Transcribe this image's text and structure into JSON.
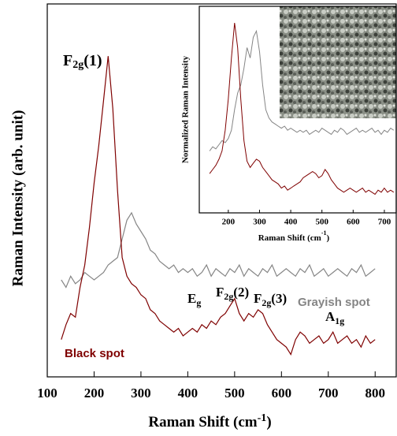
{
  "chart_data": [
    {
      "type": "line",
      "x_label": {
        "text": "Raman Shift (cm",
        "sup": "-1",
        "end": ")"
      },
      "y_label": "Raman Intensity (arb. unit)",
      "xlim": [
        100,
        845
      ],
      "ylim": [
        0,
        100
      ],
      "xticks": [
        100,
        200,
        300,
        400,
        500,
        600,
        700,
        800
      ],
      "x": [
        130,
        140,
        150,
        160,
        170,
        180,
        190,
        200,
        210,
        220,
        230,
        240,
        250,
        260,
        270,
        280,
        290,
        300,
        310,
        320,
        330,
        340,
        350,
        360,
        370,
        380,
        390,
        400,
        410,
        420,
        430,
        440,
        450,
        460,
        470,
        480,
        490,
        500,
        510,
        520,
        530,
        540,
        550,
        560,
        570,
        580,
        590,
        600,
        610,
        620,
        630,
        640,
        650,
        660,
        670,
        680,
        690,
        700,
        710,
        720,
        730,
        740,
        750,
        760,
        770,
        780,
        790,
        800
      ],
      "series": [
        {
          "name": "Grayish spot",
          "color": "#858585",
          "values": [
            26,
            24,
            27,
            25,
            26,
            28,
            27,
            26,
            27,
            28,
            30,
            31,
            32,
            37,
            42,
            44,
            41,
            39,
            37,
            34,
            33,
            31,
            30,
            29,
            30,
            28,
            29,
            28,
            29,
            27,
            28,
            30,
            27,
            29,
            28,
            27,
            29,
            28,
            30,
            27,
            29,
            28,
            27,
            29,
            28,
            30,
            27,
            28,
            29,
            28,
            27,
            29,
            28,
            30,
            27,
            28,
            29,
            27,
            28,
            29,
            28,
            27,
            29,
            28,
            30,
            27,
            28,
            29
          ]
        },
        {
          "name": "Black spot",
          "color": "#7f0000",
          "values": [
            10,
            14,
            17,
            16,
            24,
            30,
            40,
            52,
            62,
            74,
            86,
            72,
            50,
            32,
            27,
            25,
            24,
            22,
            21,
            18,
            17,
            15,
            14,
            13,
            12,
            13,
            11,
            12,
            13,
            12,
            14,
            13,
            15,
            14,
            16,
            17,
            19,
            21,
            17,
            15,
            17,
            16,
            18,
            17,
            14,
            12,
            10,
            9,
            8,
            6,
            10,
            12,
            11,
            9,
            10,
            11,
            9,
            10,
            12,
            9,
            10,
            11,
            9,
            10,
            8,
            11,
            9,
            10
          ]
        }
      ],
      "peaks": [
        {
          "main": "F",
          "sub": "2g",
          "suffix": "(1)"
        },
        {
          "main": "E",
          "sub": "g",
          "suffix": ""
        },
        {
          "main": "F",
          "sub": "2g",
          "suffix": "(2)"
        },
        {
          "main": "F",
          "sub": "2g",
          "suffix": "(3)"
        },
        {
          "main": "A",
          "sub": "1g",
          "suffix": ""
        }
      ]
    },
    {
      "type": "line",
      "x_label": {
        "text": "Raman Shift (cm",
        "sup": "-1",
        "end": ")"
      },
      "y_label": "Normalized Raman Intensity",
      "xlim": [
        107,
        738
      ],
      "ylim": [
        0,
        100
      ],
      "xticks": [
        200,
        300,
        400,
        500,
        600,
        700
      ],
      "x": [
        140,
        150,
        160,
        170,
        180,
        190,
        200,
        210,
        220,
        230,
        240,
        250,
        260,
        270,
        280,
        290,
        300,
        310,
        320,
        330,
        340,
        350,
        360,
        370,
        380,
        390,
        400,
        410,
        420,
        430,
        440,
        450,
        460,
        470,
        480,
        490,
        500,
        510,
        520,
        530,
        540,
        550,
        560,
        570,
        580,
        590,
        600,
        610,
        620,
        630,
        640,
        650,
        660,
        670,
        680,
        690,
        700,
        710,
        720,
        730
      ],
      "series": [
        {
          "color": "#858585",
          "values": [
            30,
            32,
            31,
            33,
            35,
            34,
            36,
            40,
            50,
            58,
            62,
            70,
            80,
            75,
            85,
            88,
            78,
            62,
            50,
            46,
            44,
            43,
            42,
            41,
            42,
            40,
            41,
            40,
            39,
            40,
            39,
            40,
            38,
            39,
            40,
            39,
            41,
            40,
            39,
            38,
            40,
            39,
            41,
            40,
            38,
            39,
            40,
            41,
            39,
            40,
            39,
            40,
            41,
            39,
            40,
            38,
            40,
            39,
            41,
            40
          ]
        },
        {
          "color": "#7f0000",
          "values": [
            19,
            21,
            23,
            26,
            30,
            40,
            55,
            75,
            92,
            80,
            55,
            35,
            25,
            22,
            24,
            26,
            25,
            22,
            20,
            18,
            16,
            15,
            14,
            12,
            13,
            11,
            12,
            13,
            14,
            15,
            17,
            18,
            19,
            20,
            19,
            17,
            18,
            21,
            19,
            16,
            14,
            12,
            11,
            10,
            11,
            12,
            11,
            10,
            11,
            12,
            10,
            11,
            10,
            9,
            11,
            10,
            12,
            10,
            11,
            10
          ]
        }
      ]
    }
  ]
}
